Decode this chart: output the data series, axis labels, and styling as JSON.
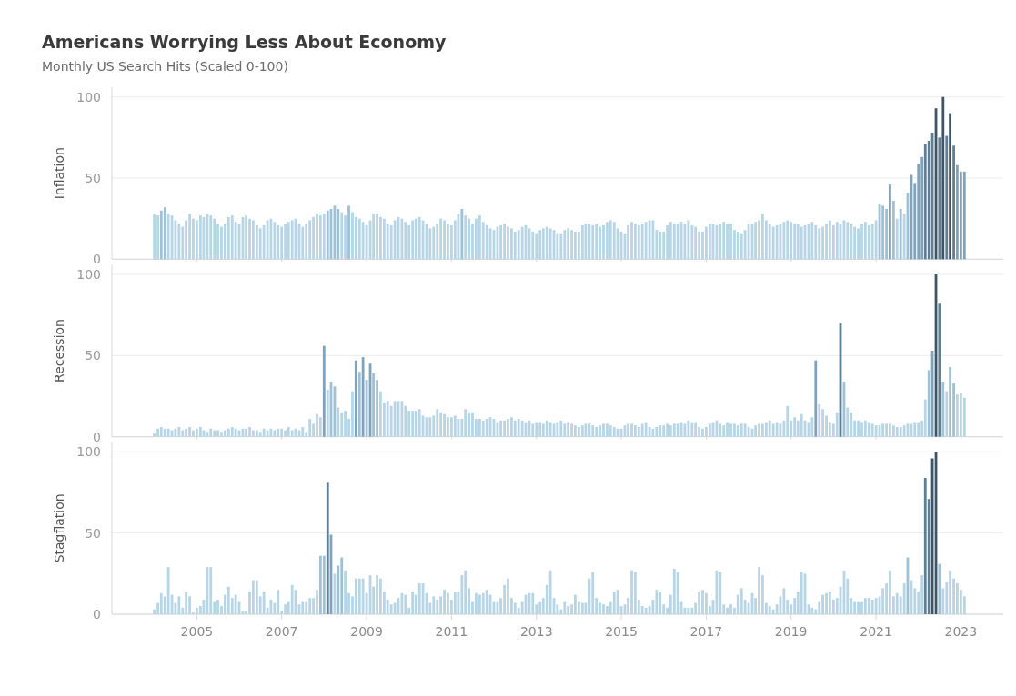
{
  "chart_data": [
    {
      "type": "bar",
      "title": "Americans Worrying Less About Economy",
      "subtitle": "Monthly US Search Hits (Scaled 0-100)",
      "ylabel": "Inflation",
      "xlim": [
        "2003-01",
        "2024-01"
      ],
      "xticks": [
        "2005",
        "2007",
        "2009",
        "2011",
        "2013",
        "2015",
        "2017",
        "2019",
        "2021",
        "2023"
      ],
      "ylim": [
        0,
        106
      ],
      "yticks": [
        0,
        50,
        100
      ],
      "grid": "y",
      "tick_labels": "y",
      "x": [
        "2004-01",
        "2004-02",
        "2004-03",
        "2004-04",
        "2004-05",
        "2004-06",
        "2004-07",
        "2004-08",
        "2004-09",
        "2004-10",
        "2004-11",
        "2004-12",
        "2005-01",
        "2005-02",
        "2005-03",
        "2005-04",
        "2005-05",
        "2005-06",
        "2005-07",
        "2005-08",
        "2005-09",
        "2005-10",
        "2005-11",
        "2005-12",
        "2006-01",
        "2006-02",
        "2006-03",
        "2006-04",
        "2006-05",
        "2006-06",
        "2006-07",
        "2006-08",
        "2006-09",
        "2006-10",
        "2006-11",
        "2006-12",
        "2007-01",
        "2007-02",
        "2007-03",
        "2007-04",
        "2007-05",
        "2007-06",
        "2007-07",
        "2007-08",
        "2007-09",
        "2007-10",
        "2007-11",
        "2007-12",
        "2008-01",
        "2008-02",
        "2008-03",
        "2008-04",
        "2008-05",
        "2008-06",
        "2008-07",
        "2008-08",
        "2008-09",
        "2008-10",
        "2008-11",
        "2008-12",
        "2009-01",
        "2009-02",
        "2009-03",
        "2009-04",
        "2009-05",
        "2009-06",
        "2009-07",
        "2009-08",
        "2009-09",
        "2009-10",
        "2009-11",
        "2009-12",
        "2010-01",
        "2010-02",
        "2010-03",
        "2010-04",
        "2010-05",
        "2010-06",
        "2010-07",
        "2010-08",
        "2010-09",
        "2010-10",
        "2010-11",
        "2010-12",
        "2011-01",
        "2011-02",
        "2011-03",
        "2011-04",
        "2011-05",
        "2011-06",
        "2011-07",
        "2011-08",
        "2011-09",
        "2011-10",
        "2011-11",
        "2011-12",
        "2012-01",
        "2012-02",
        "2012-03",
        "2012-04",
        "2012-05",
        "2012-06",
        "2012-07",
        "2012-08",
        "2012-09",
        "2012-10",
        "2012-11",
        "2012-12",
        "2013-01",
        "2013-02",
        "2013-03",
        "2013-04",
        "2013-05",
        "2013-06",
        "2013-07",
        "2013-08",
        "2013-09",
        "2013-10",
        "2013-11",
        "2013-12",
        "2014-01",
        "2014-02",
        "2014-03",
        "2014-04",
        "2014-05",
        "2014-06",
        "2014-07",
        "2014-08",
        "2014-09",
        "2014-10",
        "2014-11",
        "2014-12",
        "2015-01",
        "2015-02",
        "2015-03",
        "2015-04",
        "2015-05",
        "2015-06",
        "2015-07",
        "2015-08",
        "2015-09",
        "2015-10",
        "2015-11",
        "2015-12",
        "2016-01",
        "2016-02",
        "2016-03",
        "2016-04",
        "2016-05",
        "2016-06",
        "2016-07",
        "2016-08",
        "2016-09",
        "2016-10",
        "2016-11",
        "2016-12",
        "2017-01",
        "2017-02",
        "2017-03",
        "2017-04",
        "2017-05",
        "2017-06",
        "2017-07",
        "2017-08",
        "2017-09",
        "2017-10",
        "2017-11",
        "2017-12",
        "2018-01",
        "2018-02",
        "2018-03",
        "2018-04",
        "2018-05",
        "2018-06",
        "2018-07",
        "2018-08",
        "2018-09",
        "2018-10",
        "2018-11",
        "2018-12",
        "2019-01",
        "2019-02",
        "2019-03",
        "2019-04",
        "2019-05",
        "2019-06",
        "2019-07",
        "2019-08",
        "2019-09",
        "2019-10",
        "2019-11",
        "2019-12",
        "2020-01",
        "2020-02",
        "2020-03",
        "2020-04",
        "2020-05",
        "2020-06",
        "2020-07",
        "2020-08",
        "2020-09",
        "2020-10",
        "2020-11",
        "2020-12",
        "2021-01",
        "2021-02",
        "2021-03",
        "2021-04",
        "2021-05",
        "2021-06",
        "2021-07",
        "2021-08",
        "2021-09",
        "2021-10",
        "2021-11",
        "2021-12",
        "2022-01",
        "2022-02",
        "2022-03",
        "2022-04",
        "2022-05",
        "2022-06",
        "2022-07",
        "2022-08",
        "2022-09",
        "2022-10",
        "2022-11",
        "2022-12",
        "2023-01",
        "2023-02"
      ],
      "values": [
        28,
        27,
        30,
        32,
        28,
        27,
        24,
        22,
        20,
        24,
        28,
        25,
        24,
        27,
        26,
        28,
        27,
        25,
        22,
        20,
        22,
        26,
        27,
        23,
        22,
        26,
        27,
        25,
        24,
        21,
        19,
        21,
        24,
        25,
        23,
        21,
        20,
        22,
        23,
        24,
        25,
        22,
        20,
        22,
        24,
        26,
        28,
        27,
        28,
        30,
        31,
        33,
        31,
        29,
        27,
        33,
        29,
        26,
        25,
        23,
        21,
        24,
        28,
        28,
        26,
        25,
        22,
        21,
        24,
        26,
        25,
        23,
        21,
        24,
        25,
        26,
        24,
        22,
        19,
        20,
        22,
        25,
        24,
        22,
        21,
        24,
        28,
        31,
        27,
        25,
        22,
        25,
        27,
        23,
        21,
        19,
        18,
        20,
        21,
        22,
        20,
        19,
        17,
        18,
        20,
        21,
        19,
        17,
        16,
        18,
        19,
        20,
        19,
        18,
        16,
        16,
        18,
        19,
        18,
        17,
        17,
        21,
        22,
        22,
        21,
        22,
        20,
        21,
        23,
        24,
        23,
        19,
        17,
        16,
        21,
        23,
        22,
        21,
        22,
        23,
        24,
        24,
        18,
        17,
        17,
        21,
        23,
        22,
        22,
        23,
        22,
        24,
        21,
        20,
        17,
        17,
        20,
        22,
        22,
        21,
        22,
        23,
        22,
        22,
        18,
        17,
        16,
        18,
        22,
        22,
        23,
        24,
        28,
        24,
        22,
        20,
        21,
        22,
        23,
        24,
        23,
        22,
        22,
        20,
        21,
        22,
        23,
        21,
        19,
        20,
        22,
        24,
        21,
        23,
        22,
        24,
        23,
        22,
        20,
        19,
        22,
        23,
        21,
        22,
        24,
        34,
        33,
        31,
        46,
        36,
        25,
        31,
        28,
        41,
        52,
        47,
        59,
        63,
        71,
        73,
        78,
        93,
        75,
        100,
        76,
        90,
        70,
        58,
        54,
        54
      ],
      "colors": [
        "#b7d5e5",
        "#b7d5e5",
        "#9dc1d7",
        "#9dc1d7",
        "#b7d5e5",
        "#b7d5e5",
        "#b7d5e5",
        "#b7d5e5",
        "#b7d5e5",
        "#b7d5e5",
        "#b7d5e5",
        "#b7d5e5",
        "#b7d5e5",
        "#b7d5e5",
        "#b7d5e5",
        "#b7d5e5",
        "#b7d5e5",
        "#b7d5e5",
        "#b7d5e5",
        "#b7d5e5",
        "#b7d5e5",
        "#b7d5e5",
        "#b7d5e5",
        "#b7d5e5",
        "#b7d5e5",
        "#b7d5e5",
        "#b7d5e5",
        "#b7d5e5",
        "#b7d5e5",
        "#b7d5e5",
        "#b7d5e5",
        "#b7d5e5",
        "#b7d5e5",
        "#b7d5e5",
        "#b7d5e5",
        "#b7d5e5",
        "#b7d5e5",
        "#b7d5e5",
        "#b7d5e5",
        "#b7d5e5",
        "#b7d5e5",
        "#b7d5e5",
        "#b7d5e5",
        "#b7d5e5",
        "#b7d5e5",
        "#b7d5e5",
        "#b7d5e5",
        "#b7d5e5",
        "#b7d5e5",
        "#9dc1d7",
        "#9dc1d7",
        "#9dc1d7",
        "#9dc1d7",
        "#b7d5e5",
        "#b7d5e5",
        "#9dc1d7",
        "#b7d5e5",
        "#b7d5e5",
        "#b7d5e5",
        "#b7d5e5",
        "#b7d5e5",
        "#b7d5e5",
        "#b7d5e5",
        "#b7d5e5",
        "#b7d5e5",
        "#b7d5e5",
        "#b7d5e5",
        "#b7d5e5",
        "#b7d5e5",
        "#b7d5e5",
        "#b7d5e5",
        "#b7d5e5",
        "#b7d5e5",
        "#b7d5e5",
        "#b7d5e5",
        "#b7d5e5",
        "#b7d5e5",
        "#b7d5e5",
        "#b7d5e5",
        "#b7d5e5",
        "#b7d5e5",
        "#b7d5e5",
        "#b7d5e5",
        "#b7d5e5",
        "#b7d5e5",
        "#b7d5e5",
        "#b7d5e5",
        "#9dc1d7",
        "#b7d5e5",
        "#b7d5e5",
        "#b7d5e5",
        "#b7d5e5",
        "#b7d5e5",
        "#b7d5e5",
        "#b7d5e5",
        "#b7d5e5",
        "#b7d5e5",
        "#b7d5e5",
        "#b7d5e5",
        "#b7d5e5",
        "#b7d5e5",
        "#b7d5e5",
        "#b7d5e5",
        "#b7d5e5",
        "#b7d5e5",
        "#b7d5e5",
        "#b7d5e5",
        "#b7d5e5",
        "#b7d5e5",
        "#b7d5e5",
        "#b7d5e5",
        "#b7d5e5",
        "#b7d5e5",
        "#b7d5e5",
        "#b7d5e5",
        "#b7d5e5",
        "#b7d5e5",
        "#b7d5e5",
        "#b7d5e5",
        "#b7d5e5",
        "#b7d5e5",
        "#b7d5e5",
        "#b7d5e5",
        "#b7d5e5",
        "#b7d5e5",
        "#b7d5e5",
        "#b7d5e5",
        "#b7d5e5",
        "#b7d5e5",
        "#b7d5e5",
        "#b7d5e5",
        "#b7d5e5",
        "#b7d5e5",
        "#b7d5e5",
        "#b7d5e5",
        "#b7d5e5",
        "#b7d5e5",
        "#b7d5e5",
        "#b7d5e5",
        "#b7d5e5",
        "#b7d5e5",
        "#b7d5e5",
        "#b7d5e5",
        "#b7d5e5",
        "#b7d5e5",
        "#b7d5e5",
        "#b7d5e5",
        "#b7d5e5",
        "#b7d5e5",
        "#b7d5e5",
        "#b7d5e5",
        "#b7d5e5",
        "#b7d5e5",
        "#b7d5e5",
        "#b7d5e5",
        "#b7d5e5",
        "#b7d5e5",
        "#b7d5e5",
        "#b7d5e5",
        "#b7d5e5",
        "#b7d5e5",
        "#b7d5e5",
        "#b7d5e5",
        "#b7d5e5",
        "#b7d5e5",
        "#b7d5e5",
        "#b7d5e5",
        "#b7d5e5",
        "#b7d5e5",
        "#b7d5e5",
        "#b7d5e5",
        "#b7d5e5",
        "#b7d5e5",
        "#b7d5e5",
        "#b7d5e5",
        "#b7d5e5",
        "#b7d5e5",
        "#b7d5e5",
        "#b7d5e5",
        "#b7d5e5",
        "#b7d5e5",
        "#b7d5e5",
        "#b7d5e5",
        "#b7d5e5",
        "#b7d5e5",
        "#b7d5e5",
        "#b7d5e5",
        "#b7d5e5",
        "#b7d5e5",
        "#b7d5e5",
        "#b7d5e5",
        "#b7d5e5",
        "#b7d5e5",
        "#b7d5e5",
        "#b7d5e5",
        "#b7d5e5",
        "#b7d5e5",
        "#b7d5e5",
        "#b7d5e5",
        "#b7d5e5",
        "#b7d5e5",
        "#b7d5e5",
        "#b7d5e5",
        "#b7d5e5",
        "#b7d5e5",
        "#9dc1d7",
        "#9dc1d7",
        "#9dc1d7",
        "#7fa3bc",
        "#9dc1d7",
        "#b7d5e5",
        "#9dc1d7",
        "#b7d5e5",
        "#9dc1d7",
        "#7fa3bc",
        "#7fa3bc",
        "#7fa3bc",
        "#7fa3bc",
        "#5f7f95",
        "#5f7f95",
        "#5f7f95",
        "#3e5567",
        "#5f7f95",
        "#3e5567",
        "#5f7f95",
        "#3e5567",
        "#5f7f95",
        "#7fa3bc",
        "#7fa3bc",
        "#7fa3bc"
      ]
    },
    {
      "type": "bar",
      "ylabel": "Recession",
      "xlim": [
        "2003-01",
        "2024-01"
      ],
      "xticks": [
        "2005",
        "2007",
        "2009",
        "2011",
        "2013",
        "2015",
        "2017",
        "2019",
        "2021",
        "2023"
      ],
      "ylim": [
        0,
        106
      ],
      "yticks": [
        0,
        50,
        100
      ],
      "grid": "y",
      "tick_labels": "y",
      "x": [
        "2004-01",
        "2004-02",
        "2004-03",
        "2004-04",
        "2004-05",
        "2004-06",
        "2004-07",
        "2004-08",
        "2004-09",
        "2004-10",
        "2004-11",
        "2004-12",
        "2005-01",
        "2005-02",
        "2005-03",
        "2005-04",
        "2005-05",
        "2005-06",
        "2005-07",
        "2005-08",
        "2005-09",
        "2005-10",
        "2005-11",
        "2005-12",
        "2006-01",
        "2006-02",
        "2006-03",
        "2006-04",
        "2006-05",
        "2006-06",
        "2006-07",
        "2006-08",
        "2006-09",
        "2006-10",
        "2006-11",
        "2006-12",
        "2007-01",
        "2007-02",
        "2007-03",
        "2007-04",
        "2007-05",
        "2007-06",
        "2007-07",
        "2007-08",
        "2007-09",
        "2007-10",
        "2007-11",
        "2007-12",
        "2008-01",
        "2008-02",
        "2008-03",
        "2008-04",
        "2008-05",
        "2008-06",
        "2008-07",
        "2008-08",
        "2008-09",
        "2008-10",
        "2008-11",
        "2008-12",
        "2009-01",
        "2009-02",
        "2009-03",
        "2009-04",
        "2009-05",
        "2009-06",
        "2009-07",
        "2009-08",
        "2009-09",
        "2009-10",
        "2009-11",
        "2009-12",
        "2010-01",
        "2010-02",
        "2010-03",
        "2010-04",
        "2010-05",
        "2010-06",
        "2010-07",
        "2010-08",
        "2010-09",
        "2010-10",
        "2010-11",
        "2010-12",
        "2011-01",
        "2011-02",
        "2011-03",
        "2011-04",
        "2011-05",
        "2011-06",
        "2011-07",
        "2011-08",
        "2011-09",
        "2011-10",
        "2011-11",
        "2011-12",
        "2012-01",
        "2012-02",
        "2012-03",
        "2012-04",
        "2012-05",
        "2012-06",
        "2012-07",
        "2012-08",
        "2012-09",
        "2012-10",
        "2012-11",
        "2012-12",
        "2013-01",
        "2013-02",
        "2013-03",
        "2013-04",
        "2013-05",
        "2013-06",
        "2013-07",
        "2013-08",
        "2013-09",
        "2013-10",
        "2013-11",
        "2013-12",
        "2014-01",
        "2014-02",
        "2014-03",
        "2014-04",
        "2014-05",
        "2014-06",
        "2014-07",
        "2014-08",
        "2014-09",
        "2014-10",
        "2014-11",
        "2014-12",
        "2015-01",
        "2015-02",
        "2015-03",
        "2015-04",
        "2015-05",
        "2015-06",
        "2015-07",
        "2015-08",
        "2015-09",
        "2015-10",
        "2015-11",
        "2015-12",
        "2016-01",
        "2016-02",
        "2016-03",
        "2016-04",
        "2016-05",
        "2016-06",
        "2016-07",
        "2016-08",
        "2016-09",
        "2016-10",
        "2016-11",
        "2016-12",
        "2017-01",
        "2017-02",
        "2017-03",
        "2017-04",
        "2017-05",
        "2017-06",
        "2017-07",
        "2017-08",
        "2017-09",
        "2017-10",
        "2017-11",
        "2017-12",
        "2018-01",
        "2018-02",
        "2018-03",
        "2018-04",
        "2018-05",
        "2018-06",
        "2018-07",
        "2018-08",
        "2018-09",
        "2018-10",
        "2018-11",
        "2018-12",
        "2019-01",
        "2019-02",
        "2019-03",
        "2019-04",
        "2019-05",
        "2019-06",
        "2019-07",
        "2019-08",
        "2019-09",
        "2019-10",
        "2019-11",
        "2019-12",
        "2020-01",
        "2020-02",
        "2020-03",
        "2020-04",
        "2020-05",
        "2020-06",
        "2020-07",
        "2020-08",
        "2020-09",
        "2020-10",
        "2020-11",
        "2020-12",
        "2021-01",
        "2021-02",
        "2021-03",
        "2021-04",
        "2021-05",
        "2021-06",
        "2021-07",
        "2021-08",
        "2021-09",
        "2021-10",
        "2021-11",
        "2021-12",
        "2022-01",
        "2022-02",
        "2022-03",
        "2022-04",
        "2022-05",
        "2022-06",
        "2022-07",
        "2022-08",
        "2022-09",
        "2022-10",
        "2022-11",
        "2022-12",
        "2023-01",
        "2023-02"
      ],
      "values": [
        2,
        5,
        6,
        5,
        5,
        4,
        5,
        6,
        4,
        5,
        6,
        4,
        5,
        6,
        4,
        3,
        5,
        4,
        4,
        3,
        4,
        5,
        6,
        5,
        4,
        5,
        5,
        6,
        4,
        4,
        3,
        5,
        4,
        5,
        4,
        5,
        5,
        4,
        6,
        4,
        5,
        4,
        6,
        3,
        11,
        8,
        14,
        12,
        56,
        29,
        34,
        31,
        18,
        15,
        16,
        11,
        28,
        47,
        40,
        49,
        35,
        45,
        39,
        35,
        28,
        21,
        22,
        19,
        22,
        22,
        22,
        19,
        16,
        16,
        16,
        17,
        13,
        12,
        12,
        13,
        17,
        15,
        14,
        12,
        12,
        13,
        11,
        11,
        17,
        15,
        15,
        11,
        11,
        10,
        11,
        12,
        11,
        9,
        10,
        10,
        11,
        12,
        10,
        11,
        10,
        9,
        10,
        8,
        9,
        9,
        8,
        10,
        9,
        8,
        9,
        10,
        8,
        9,
        8,
        7,
        6,
        7,
        8,
        8,
        7,
        6,
        7,
        8,
        8,
        7,
        6,
        5,
        5,
        7,
        8,
        8,
        7,
        6,
        8,
        9,
        6,
        5,
        6,
        7,
        7,
        8,
        7,
        8,
        8,
        9,
        8,
        10,
        9,
        9,
        6,
        5,
        6,
        8,
        9,
        10,
        8,
        7,
        9,
        8,
        8,
        7,
        8,
        8,
        6,
        5,
        7,
        8,
        8,
        9,
        10,
        8,
        9,
        8,
        10,
        19,
        10,
        12,
        10,
        14,
        10,
        9,
        12,
        47,
        20,
        17,
        13,
        9,
        8,
        15,
        70,
        34,
        18,
        15,
        10,
        10,
        9,
        10,
        9,
        8,
        7,
        7,
        8,
        8,
        8,
        7,
        6,
        6,
        7,
        8,
        8,
        9,
        9,
        10,
        23,
        41,
        53,
        100,
        82,
        34,
        28,
        43,
        33,
        26,
        27,
        24
      ],
      "colors": [
        "#b7d5e5",
        "#b7d5e5",
        "#b7d5e5",
        "#b7d5e5",
        "#b7d5e5",
        "#b7d5e5",
        "#b7d5e5",
        "#b7d5e5",
        "#b7d5e5",
        "#b7d5e5",
        "#b7d5e5",
        "#b7d5e5",
        "#b7d5e5",
        "#b7d5e5",
        "#b7d5e5",
        "#b7d5e5",
        "#b7d5e5",
        "#b7d5e5",
        "#b7d5e5",
        "#b7d5e5",
        "#b7d5e5",
        "#b7d5e5",
        "#b7d5e5",
        "#b7d5e5",
        "#b7d5e5",
        "#b7d5e5",
        "#b7d5e5",
        "#b7d5e5",
        "#b7d5e5",
        "#b7d5e5",
        "#b7d5e5",
        "#b7d5e5",
        "#b7d5e5",
        "#b7d5e5",
        "#b7d5e5",
        "#b7d5e5",
        "#b7d5e5",
        "#b7d5e5",
        "#b7d5e5",
        "#b7d5e5",
        "#b7d5e5",
        "#b7d5e5",
        "#b7d5e5",
        "#b7d5e5",
        "#b7d5e5",
        "#b7d5e5",
        "#b7d5e5",
        "#b7d5e5",
        "#7fa3bc",
        "#b7d5e5",
        "#9dc1d7",
        "#9dc1d7",
        "#b7d5e5",
        "#b7d5e5",
        "#b7d5e5",
        "#b7d5e5",
        "#b7d5e5",
        "#7fa3bc",
        "#9dc1d7",
        "#7fa3bc",
        "#9dc1d7",
        "#7fa3bc",
        "#9dc1d7",
        "#9dc1d7",
        "#b7d5e5",
        "#b7d5e5",
        "#b7d5e5",
        "#b7d5e5",
        "#b7d5e5",
        "#b7d5e5",
        "#b7d5e5",
        "#b7d5e5",
        "#b7d5e5",
        "#b7d5e5",
        "#b7d5e5",
        "#b7d5e5",
        "#b7d5e5",
        "#b7d5e5",
        "#b7d5e5",
        "#b7d5e5",
        "#b7d5e5",
        "#b7d5e5",
        "#b7d5e5",
        "#b7d5e5",
        "#b7d5e5",
        "#b7d5e5",
        "#b7d5e5",
        "#b7d5e5",
        "#b7d5e5",
        "#b7d5e5",
        "#b7d5e5",
        "#b7d5e5",
        "#b7d5e5",
        "#b7d5e5",
        "#b7d5e5",
        "#b7d5e5",
        "#b7d5e5",
        "#b7d5e5",
        "#b7d5e5",
        "#b7d5e5",
        "#b7d5e5",
        "#b7d5e5",
        "#b7d5e5",
        "#b7d5e5",
        "#b7d5e5",
        "#b7d5e5",
        "#b7d5e5",
        "#b7d5e5",
        "#b7d5e5",
        "#b7d5e5",
        "#b7d5e5",
        "#b7d5e5",
        "#b7d5e5",
        "#b7d5e5",
        "#b7d5e5",
        "#b7d5e5",
        "#b7d5e5",
        "#b7d5e5",
        "#b7d5e5",
        "#b7d5e5",
        "#b7d5e5",
        "#b7d5e5",
        "#b7d5e5",
        "#b7d5e5",
        "#b7d5e5",
        "#b7d5e5",
        "#b7d5e5",
        "#b7d5e5",
        "#b7d5e5",
        "#b7d5e5",
        "#b7d5e5",
        "#b7d5e5",
        "#b7d5e5",
        "#b7d5e5",
        "#b7d5e5",
        "#b7d5e5",
        "#b7d5e5",
        "#b7d5e5",
        "#b7d5e5",
        "#b7d5e5",
        "#b7d5e5",
        "#b7d5e5",
        "#b7d5e5",
        "#b7d5e5",
        "#b7d5e5",
        "#b7d5e5",
        "#b7d5e5",
        "#b7d5e5",
        "#b7d5e5",
        "#b7d5e5",
        "#b7d5e5",
        "#b7d5e5",
        "#b7d5e5",
        "#b7d5e5",
        "#b7d5e5",
        "#b7d5e5",
        "#b7d5e5",
        "#b7d5e5",
        "#b7d5e5",
        "#b7d5e5",
        "#b7d5e5",
        "#b7d5e5",
        "#b7d5e5",
        "#b7d5e5",
        "#b7d5e5",
        "#b7d5e5",
        "#b7d5e5",
        "#b7d5e5",
        "#b7d5e5",
        "#b7d5e5",
        "#b7d5e5",
        "#b7d5e5",
        "#b7d5e5",
        "#b7d5e5",
        "#b7d5e5",
        "#b7d5e5",
        "#b7d5e5",
        "#b7d5e5",
        "#b7d5e5",
        "#b7d5e5",
        "#b7d5e5",
        "#b7d5e5",
        "#b7d5e5",
        "#b7d5e5",
        "#b7d5e5",
        "#b7d5e5",
        "#b7d5e5",
        "#7fa3bc",
        "#b7d5e5",
        "#b7d5e5",
        "#b7d5e5",
        "#b7d5e5",
        "#b7d5e5",
        "#b7d5e5",
        "#5f7f95",
        "#9dc1d7",
        "#b7d5e5",
        "#b7d5e5",
        "#b7d5e5",
        "#b7d5e5",
        "#b7d5e5",
        "#b7d5e5",
        "#b7d5e5",
        "#b7d5e5",
        "#b7d5e5",
        "#b7d5e5",
        "#b7d5e5",
        "#b7d5e5",
        "#b7d5e5",
        "#b7d5e5",
        "#b7d5e5",
        "#b7d5e5",
        "#b7d5e5",
        "#b7d5e5",
        "#b7d5e5",
        "#b7d5e5",
        "#b7d5e5",
        "#b7d5e5",
        "#b7d5e5",
        "#9dc1d7",
        "#7fa3bc",
        "#3e5567",
        "#5f7f95",
        "#9dc1d7",
        "#b7d5e5",
        "#9dc1d7",
        "#9dc1d7",
        "#b7d5e5",
        "#b7d5e5",
        "#b7d5e5"
      ]
    },
    {
      "type": "bar",
      "ylabel": "Stagflation",
      "xlim": [
        "2003-01",
        "2024-01"
      ],
      "xticks": [
        "2005",
        "2007",
        "2009",
        "2011",
        "2013",
        "2015",
        "2017",
        "2019",
        "2021",
        "2023"
      ],
      "ylim": [
        0,
        106
      ],
      "yticks": [
        0,
        50,
        100
      ],
      "grid": "y",
      "x": [
        "2004-01",
        "2004-02",
        "2004-03",
        "2004-04",
        "2004-05",
        "2004-06",
        "2004-07",
        "2004-08",
        "2004-09",
        "2004-10",
        "2004-11",
        "2004-12",
        "2005-01",
        "2005-02",
        "2005-03",
        "2005-04",
        "2005-05",
        "2005-06",
        "2005-07",
        "2005-08",
        "2005-09",
        "2005-10",
        "2005-11",
        "2005-12",
        "2006-01",
        "2006-02",
        "2006-03",
        "2006-04",
        "2006-05",
        "2006-06",
        "2006-07",
        "2006-08",
        "2006-09",
        "2006-10",
        "2006-11",
        "2006-12",
        "2007-01",
        "2007-02",
        "2007-03",
        "2007-04",
        "2007-05",
        "2007-06",
        "2007-07",
        "2007-08",
        "2007-09",
        "2007-10",
        "2007-11",
        "2007-12",
        "2008-01",
        "2008-02",
        "2008-03",
        "2008-04",
        "2008-05",
        "2008-06",
        "2008-07",
        "2008-08",
        "2008-09",
        "2008-10",
        "2008-11",
        "2008-12",
        "2009-01",
        "2009-02",
        "2009-03",
        "2009-04",
        "2009-05",
        "2009-06",
        "2009-07",
        "2009-08",
        "2009-09",
        "2009-10",
        "2009-11",
        "2009-12",
        "2010-01",
        "2010-02",
        "2010-03",
        "2010-04",
        "2010-05",
        "2010-06",
        "2010-07",
        "2010-08",
        "2010-09",
        "2010-10",
        "2010-11",
        "2010-12",
        "2011-01",
        "2011-02",
        "2011-03",
        "2011-04",
        "2011-05",
        "2011-06",
        "2011-07",
        "2011-08",
        "2011-09",
        "2011-10",
        "2011-11",
        "2011-12",
        "2012-01",
        "2012-02",
        "2012-03",
        "2012-04",
        "2012-05",
        "2012-06",
        "2012-07",
        "2012-08",
        "2012-09",
        "2012-10",
        "2012-11",
        "2012-12",
        "2013-01",
        "2013-02",
        "2013-03",
        "2013-04",
        "2013-05",
        "2013-06",
        "2013-07",
        "2013-08",
        "2013-09",
        "2013-10",
        "2013-11",
        "2013-12",
        "2014-01",
        "2014-02",
        "2014-03",
        "2014-04",
        "2014-05",
        "2014-06",
        "2014-07",
        "2014-08",
        "2014-09",
        "2014-10",
        "2014-11",
        "2014-12",
        "2015-01",
        "2015-02",
        "2015-03",
        "2015-04",
        "2015-05",
        "2015-06",
        "2015-07",
        "2015-08",
        "2015-09",
        "2015-10",
        "2015-11",
        "2015-12",
        "2016-01",
        "2016-02",
        "2016-03",
        "2016-04",
        "2016-05",
        "2016-06",
        "2016-07",
        "2016-08",
        "2016-09",
        "2016-10",
        "2016-11",
        "2016-12",
        "2017-01",
        "2017-02",
        "2017-03",
        "2017-04",
        "2017-05",
        "2017-06",
        "2017-07",
        "2017-08",
        "2017-09",
        "2017-10",
        "2017-11",
        "2017-12",
        "2018-01",
        "2018-02",
        "2018-03",
        "2018-04",
        "2018-05",
        "2018-06",
        "2018-07",
        "2018-08",
        "2018-09",
        "2018-10",
        "2018-11",
        "2018-12",
        "2019-01",
        "2019-02",
        "2019-03",
        "2019-04",
        "2019-05",
        "2019-06",
        "2019-07",
        "2019-08",
        "2019-09",
        "2019-10",
        "2019-11",
        "2019-12",
        "2020-01",
        "2020-02",
        "2020-03",
        "2020-04",
        "2020-05",
        "2020-06",
        "2020-07",
        "2020-08",
        "2020-09",
        "2020-10",
        "2020-11",
        "2020-12",
        "2021-01",
        "2021-02",
        "2021-03",
        "2021-04",
        "2021-05",
        "2021-06",
        "2021-07",
        "2021-08",
        "2021-09",
        "2021-10",
        "2021-11",
        "2021-12",
        "2022-01",
        "2022-02",
        "2022-03",
        "2022-04",
        "2022-05",
        "2022-06",
        "2022-07",
        "2022-08",
        "2022-09",
        "2022-10",
        "2022-11",
        "2022-12",
        "2023-01",
        "2023-02"
      ],
      "values": [
        3,
        7,
        13,
        11,
        29,
        12,
        7,
        11,
        4,
        14,
        11,
        1,
        4,
        5,
        9,
        29,
        29,
        8,
        9,
        5,
        12,
        17,
        10,
        12,
        8,
        2,
        2,
        14,
        21,
        21,
        11,
        14,
        4,
        9,
        7,
        15,
        2,
        6,
        8,
        18,
        15,
        6,
        8,
        8,
        10,
        10,
        15,
        36,
        36,
        81,
        49,
        25,
        30,
        35,
        27,
        13,
        11,
        22,
        22,
        22,
        13,
        24,
        17,
        24,
        22,
        14,
        9,
        6,
        7,
        10,
        13,
        12,
        4,
        14,
        12,
        19,
        19,
        13,
        7,
        11,
        9,
        11,
        15,
        13,
        9,
        14,
        14,
        24,
        27,
        16,
        8,
        13,
        12,
        13,
        15,
        12,
        8,
        8,
        10,
        18,
        22,
        10,
        7,
        4,
        8,
        12,
        13,
        13,
        6,
        8,
        10,
        18,
        27,
        10,
        6,
        3,
        8,
        5,
        6,
        12,
        8,
        7,
        7,
        22,
        26,
        10,
        7,
        6,
        5,
        8,
        14,
        15,
        5,
        6,
        10,
        27,
        26,
        9,
        5,
        4,
        5,
        9,
        15,
        14,
        6,
        4,
        12,
        28,
        26,
        8,
        4,
        4,
        4,
        7,
        14,
        15,
        13,
        5,
        9,
        27,
        26,
        6,
        4,
        6,
        4,
        12,
        16,
        9,
        7,
        13,
        10,
        29,
        24,
        7,
        5,
        3,
        6,
        11,
        16,
        9,
        6,
        10,
        14,
        26,
        25,
        6,
        4,
        3,
        8,
        12,
        13,
        14,
        9,
        10,
        17,
        27,
        22,
        10,
        8,
        8,
        8,
        10,
        10,
        9,
        10,
        11,
        16,
        19,
        27,
        11,
        13,
        11,
        19,
        35,
        21,
        16,
        14,
        24,
        84,
        71,
        96,
        100,
        31,
        16,
        20,
        27,
        22,
        19,
        15,
        11
      ],
      "colors": [
        "#b7d5e5",
        "#b7d5e5",
        "#b7d5e5",
        "#b7d5e5",
        "#b7d5e5",
        "#b7d5e5",
        "#b7d5e5",
        "#b7d5e5",
        "#b7d5e5",
        "#b7d5e5",
        "#b7d5e5",
        "#b7d5e5",
        "#b7d5e5",
        "#b7d5e5",
        "#b7d5e5",
        "#b7d5e5",
        "#b7d5e5",
        "#b7d5e5",
        "#b7d5e5",
        "#b7d5e5",
        "#b7d5e5",
        "#b7d5e5",
        "#b7d5e5",
        "#b7d5e5",
        "#b7d5e5",
        "#b7d5e5",
        "#b7d5e5",
        "#b7d5e5",
        "#b7d5e5",
        "#b7d5e5",
        "#b7d5e5",
        "#b7d5e5",
        "#b7d5e5",
        "#b7d5e5",
        "#b7d5e5",
        "#b7d5e5",
        "#b7d5e5",
        "#b7d5e5",
        "#b7d5e5",
        "#b7d5e5",
        "#b7d5e5",
        "#b7d5e5",
        "#b7d5e5",
        "#b7d5e5",
        "#b7d5e5",
        "#b7d5e5",
        "#b7d5e5",
        "#9dc1d7",
        "#9dc1d7",
        "#5f7f95",
        "#7fa3bc",
        "#b7d5e5",
        "#9dc1d7",
        "#9dc1d7",
        "#b7d5e5",
        "#b7d5e5",
        "#b7d5e5",
        "#b7d5e5",
        "#b7d5e5",
        "#b7d5e5",
        "#b7d5e5",
        "#b7d5e5",
        "#b7d5e5",
        "#b7d5e5",
        "#b7d5e5",
        "#b7d5e5",
        "#b7d5e5",
        "#b7d5e5",
        "#b7d5e5",
        "#b7d5e5",
        "#b7d5e5",
        "#b7d5e5",
        "#b7d5e5",
        "#b7d5e5",
        "#b7d5e5",
        "#b7d5e5",
        "#b7d5e5",
        "#b7d5e5",
        "#b7d5e5",
        "#b7d5e5",
        "#b7d5e5",
        "#b7d5e5",
        "#b7d5e5",
        "#b7d5e5",
        "#b7d5e5",
        "#b7d5e5",
        "#b7d5e5",
        "#b7d5e5",
        "#b7d5e5",
        "#b7d5e5",
        "#b7d5e5",
        "#b7d5e5",
        "#b7d5e5",
        "#b7d5e5",
        "#b7d5e5",
        "#b7d5e5",
        "#b7d5e5",
        "#b7d5e5",
        "#b7d5e5",
        "#b7d5e5",
        "#b7d5e5",
        "#b7d5e5",
        "#b7d5e5",
        "#b7d5e5",
        "#b7d5e5",
        "#b7d5e5",
        "#b7d5e5",
        "#b7d5e5",
        "#b7d5e5",
        "#b7d5e5",
        "#b7d5e5",
        "#b7d5e5",
        "#b7d5e5",
        "#b7d5e5",
        "#b7d5e5",
        "#b7d5e5",
        "#b7d5e5",
        "#b7d5e5",
        "#b7d5e5",
        "#b7d5e5",
        "#b7d5e5",
        "#b7d5e5",
        "#b7d5e5",
        "#b7d5e5",
        "#b7d5e5",
        "#b7d5e5",
        "#b7d5e5",
        "#b7d5e5",
        "#b7d5e5",
        "#b7d5e5",
        "#b7d5e5",
        "#b7d5e5",
        "#b7d5e5",
        "#b7d5e5",
        "#b7d5e5",
        "#b7d5e5",
        "#b7d5e5",
        "#b7d5e5",
        "#b7d5e5",
        "#b7d5e5",
        "#b7d5e5",
        "#b7d5e5",
        "#b7d5e5",
        "#b7d5e5",
        "#b7d5e5",
        "#b7d5e5",
        "#b7d5e5",
        "#b7d5e5",
        "#b7d5e5",
        "#b7d5e5",
        "#b7d5e5",
        "#b7d5e5",
        "#b7d5e5",
        "#b7d5e5",
        "#b7d5e5",
        "#b7d5e5",
        "#b7d5e5",
        "#b7d5e5",
        "#b7d5e5",
        "#b7d5e5",
        "#b7d5e5",
        "#b7d5e5",
        "#b7d5e5",
        "#b7d5e5",
        "#b7d5e5",
        "#b7d5e5",
        "#b7d5e5",
        "#b7d5e5",
        "#b7d5e5",
        "#b7d5e5",
        "#b7d5e5",
        "#b7d5e5",
        "#b7d5e5",
        "#b7d5e5",
        "#b7d5e5",
        "#b7d5e5",
        "#b7d5e5",
        "#b7d5e5",
        "#b7d5e5",
        "#b7d5e5",
        "#b7d5e5",
        "#b7d5e5",
        "#b7d5e5",
        "#b7d5e5",
        "#b7d5e5",
        "#b7d5e5",
        "#b7d5e5",
        "#b7d5e5",
        "#b7d5e5",
        "#b7d5e5",
        "#b7d5e5",
        "#b7d5e5",
        "#b7d5e5",
        "#b7d5e5",
        "#b7d5e5",
        "#b7d5e5",
        "#b7d5e5",
        "#b7d5e5",
        "#b7d5e5",
        "#b7d5e5",
        "#b7d5e5",
        "#b7d5e5",
        "#b7d5e5",
        "#b7d5e5",
        "#b7d5e5",
        "#b7d5e5",
        "#b7d5e5",
        "#b7d5e5",
        "#b7d5e5",
        "#b7d5e5",
        "#b7d5e5",
        "#b7d5e5",
        "#b7d5e5",
        "#9dc1d7",
        "#b7d5e5",
        "#b7d5e5",
        "#b7d5e5",
        "#b7d5e5",
        "#5f7f95",
        "#5f7f95",
        "#3e5567",
        "#3e5567",
        "#9dc1d7",
        "#b7d5e5",
        "#b7d5e5",
        "#b7d5e5",
        "#b7d5e5",
        "#b7d5e5",
        "#b7d5e5",
        "#b7d5e5"
      ]
    }
  ]
}
